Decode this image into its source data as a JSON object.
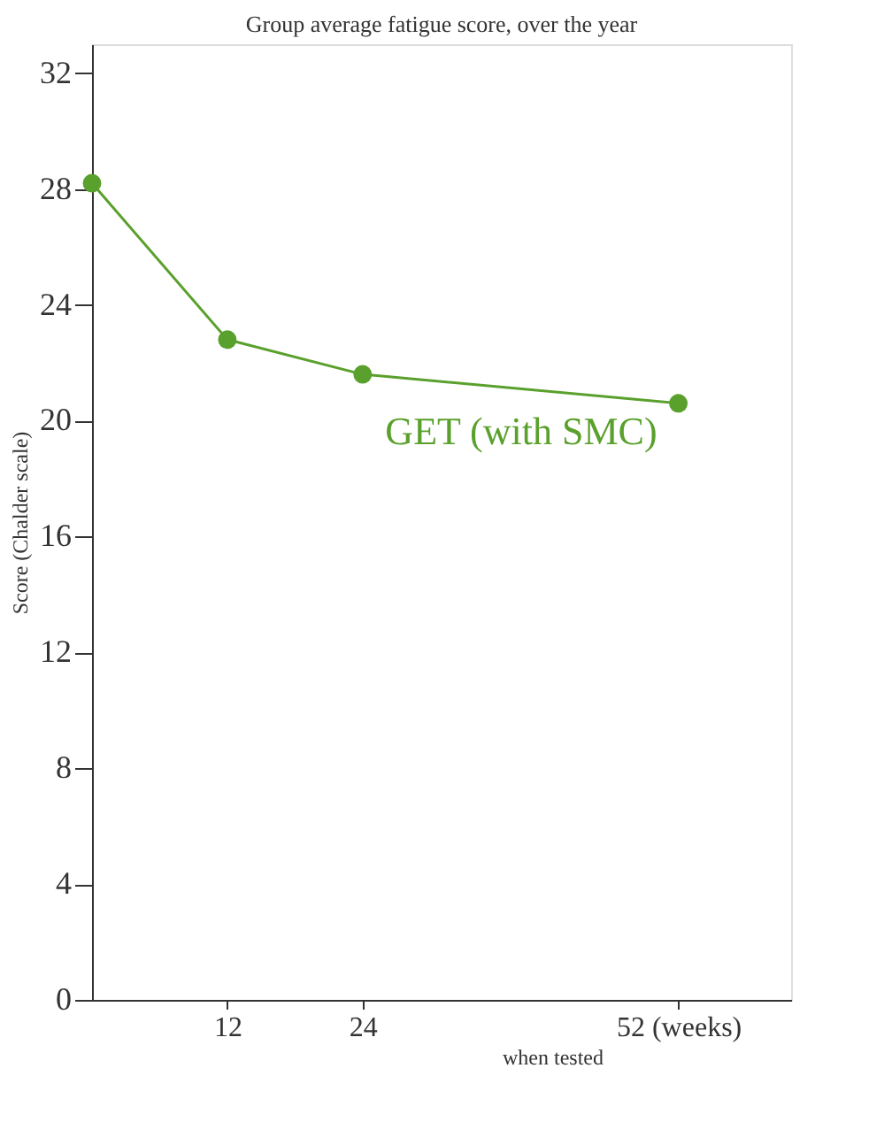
{
  "chart_data": {
    "type": "line",
    "title": "Group average fatigue score, over the year",
    "xlabel": "when tested",
    "ylabel": "Score (Chalder scale)",
    "x": [
      0,
      12,
      24,
      52
    ],
    "series": [
      {
        "name": "GET (with SMC)",
        "color": "#5aa02c",
        "values": [
          28.2,
          22.8,
          21.6,
          20.6
        ]
      }
    ],
    "xlim": [
      0,
      62
    ],
    "xticks": [
      12,
      24,
      {
        "value": 52,
        "label": "52 (weeks)"
      }
    ],
    "ylim": [
      0,
      33
    ],
    "yticks": [
      0,
      4,
      8,
      12,
      16,
      20,
      24,
      28,
      32
    ],
    "marker": "circle",
    "line_style": "solid"
  }
}
